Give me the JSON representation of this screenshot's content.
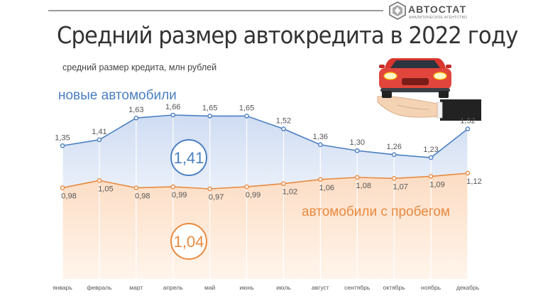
{
  "brand": {
    "name": "АВТОСТАТ",
    "tagline": "АНАЛИТИЧЕСКОЕ АГЕНТСТВО"
  },
  "title": "Средний размер автокредита в 2022 году",
  "subtitle": "средний размер кредита, млн рублей",
  "icons": {
    "logo": "autostat-logo-icon",
    "car": "car-on-hand-illustration"
  },
  "chart_data": {
    "type": "area",
    "categories": [
      "январь",
      "февраль",
      "март",
      "апрель",
      "май",
      "июнь",
      "июль",
      "август",
      "сентябрь",
      "октябрь",
      "ноябрь",
      "декабрь"
    ],
    "series": [
      {
        "name": "новые автомобили",
        "color": "#4a7fc1",
        "values": [
          1.35,
          1.41,
          1.63,
          1.66,
          1.65,
          1.65,
          1.52,
          1.36,
          1.3,
          1.26,
          1.23,
          1.52
        ],
        "labels": [
          "1,35",
          "1,41",
          "1,63",
          "1,66",
          "1,65",
          "1,65",
          "1,52",
          "1,36",
          "1,30",
          "1,26",
          "1,23",
          "1,52"
        ],
        "average": "1,41"
      },
      {
        "name": "автомобили с пробегом",
        "color": "#e88a3f",
        "values": [
          0.98,
          1.05,
          0.98,
          0.99,
          0.97,
          0.99,
          1.02,
          1.06,
          1.08,
          1.07,
          1.09,
          1.12
        ],
        "labels": [
          "0,98",
          "1,05",
          "0,98",
          "0,99",
          "0,97",
          "0,99",
          "1,02",
          "1,06",
          "1,08",
          "1,07",
          "1,09",
          "1,12"
        ],
        "average": "1,04"
      }
    ],
    "grid": "vertical",
    "legend": "inline series labels"
  }
}
